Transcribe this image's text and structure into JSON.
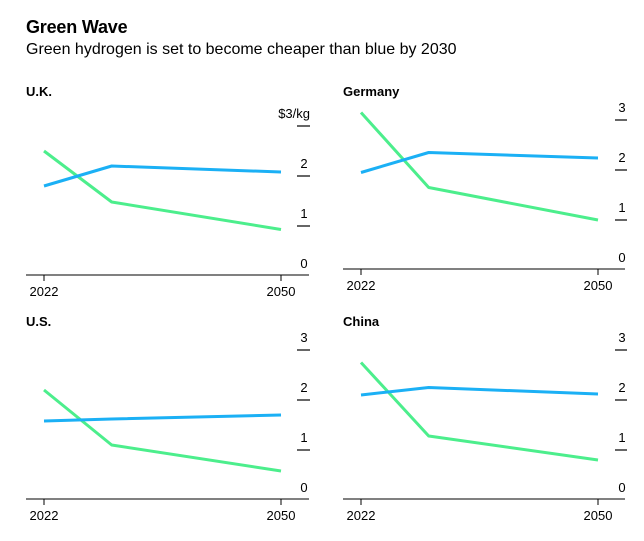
{
  "header": {
    "title": "Green Wave",
    "subtitle": "Green hydrogen is set to become cheaper than blue by 2030"
  },
  "colors": {
    "green_series": "#4cee8c",
    "blue_series": "#1bb0f5",
    "axis": "#000000"
  },
  "chart_data": [
    {
      "type": "line",
      "title": "U.K.",
      "unit_label": "$3/kg",
      "x": [
        2022,
        2030,
        2050
      ],
      "x_tick_labels": [
        "2022",
        "2050"
      ],
      "y_ticks": [
        0,
        1,
        2,
        3
      ],
      "y_tick_labels": [
        "0",
        "1",
        "2",
        ""
      ],
      "ylim": [
        0,
        3
      ],
      "series": [
        {
          "color": "#4cee8c",
          "values": [
            2.5,
            1.48,
            0.93
          ]
        },
        {
          "color": "#1bb0f5",
          "values": [
            1.8,
            2.2,
            2.08
          ]
        }
      ]
    },
    {
      "type": "line",
      "title": "Germany",
      "unit_label": "",
      "x": [
        2022,
        2030,
        2050
      ],
      "x_tick_labels": [
        "2022",
        "2050"
      ],
      "y_ticks": [
        0,
        1,
        2,
        3
      ],
      "y_tick_labels": [
        "0",
        "1",
        "2",
        "3"
      ],
      "ylim": [
        0,
        3
      ],
      "series": [
        {
          "color": "#4cee8c",
          "values": [
            3.15,
            1.65,
            1.0
          ]
        },
        {
          "color": "#1bb0f5",
          "values": [
            1.95,
            2.35,
            2.24
          ]
        }
      ]
    },
    {
      "type": "line",
      "title": "U.S.",
      "unit_label": "",
      "x": [
        2022,
        2030,
        2050
      ],
      "x_tick_labels": [
        "2022",
        "2050"
      ],
      "y_ticks": [
        0,
        1,
        2,
        3
      ],
      "y_tick_labels": [
        "0",
        "1",
        "2",
        "3"
      ],
      "ylim": [
        0,
        3
      ],
      "series": [
        {
          "color": "#4cee8c",
          "values": [
            2.2,
            1.1,
            0.58
          ]
        },
        {
          "color": "#1bb0f5",
          "values": [
            1.58,
            1.62,
            1.7
          ]
        }
      ]
    },
    {
      "type": "line",
      "title": "China",
      "unit_label": "",
      "x": [
        2022,
        2030,
        2050
      ],
      "x_tick_labels": [
        "2022",
        "2050"
      ],
      "y_ticks": [
        0,
        1,
        2,
        3
      ],
      "y_tick_labels": [
        "0",
        "1",
        "2",
        "3"
      ],
      "ylim": [
        0,
        3
      ],
      "series": [
        {
          "color": "#4cee8c",
          "values": [
            2.75,
            1.28,
            0.8
          ]
        },
        {
          "color": "#1bb0f5",
          "values": [
            2.1,
            2.25,
            2.12
          ]
        }
      ]
    }
  ]
}
